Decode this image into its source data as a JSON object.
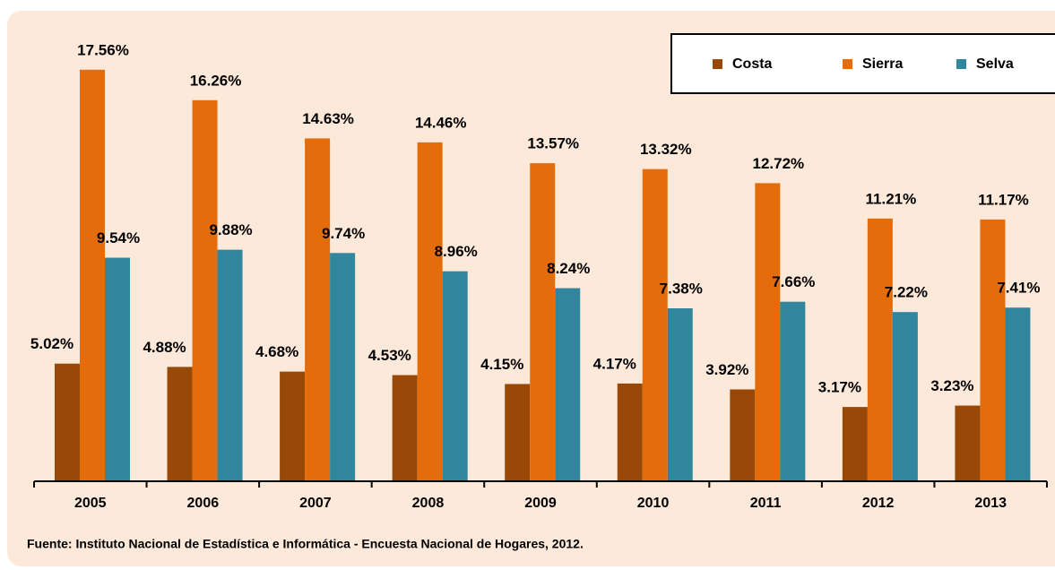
{
  "chart_data": {
    "type": "bar",
    "categories": [
      "2005",
      "2006",
      "2007",
      "2008",
      "2009",
      "2010",
      "2011",
      "2012",
      "2013"
    ],
    "series": [
      {
        "name": "Costa",
        "color": "#984807",
        "values": [
          5.02,
          4.88,
          4.68,
          4.53,
          4.15,
          4.17,
          3.92,
          3.17,
          3.23
        ],
        "value_labels": [
          "5.02%",
          "4.88%",
          "4.68%",
          "4.53%",
          "4.15%",
          "4.17%",
          "3.92%",
          "3.17%",
          "3.23%"
        ]
      },
      {
        "name": "Sierra",
        "color": "#e46c0a",
        "values": [
          17.56,
          16.26,
          14.63,
          14.46,
          13.57,
          13.32,
          12.72,
          11.21,
          11.17
        ],
        "value_labels": [
          "17.56%",
          "16.26%",
          "14.63%",
          "14.46%",
          "13.57%",
          "13.32%",
          "12.72%",
          "11.21%",
          "11.17%"
        ]
      },
      {
        "name": "Selva",
        "color": "#31859c",
        "values": [
          9.54,
          9.88,
          9.74,
          8.96,
          8.24,
          7.38,
          7.66,
          7.22,
          7.41
        ],
        "value_labels": [
          "9.54%",
          "9.88%",
          "9.74%",
          "8.96%",
          "8.24%",
          "7.38%",
          "7.66%",
          "7.22%",
          "7.41%"
        ]
      }
    ],
    "ylim": [
      0,
      20
    ],
    "legend": "top-right",
    "source": "Fuente: Instituto Nacional de Estadística e Informática - Encuesta Nacional de Hogares, 2012."
  }
}
